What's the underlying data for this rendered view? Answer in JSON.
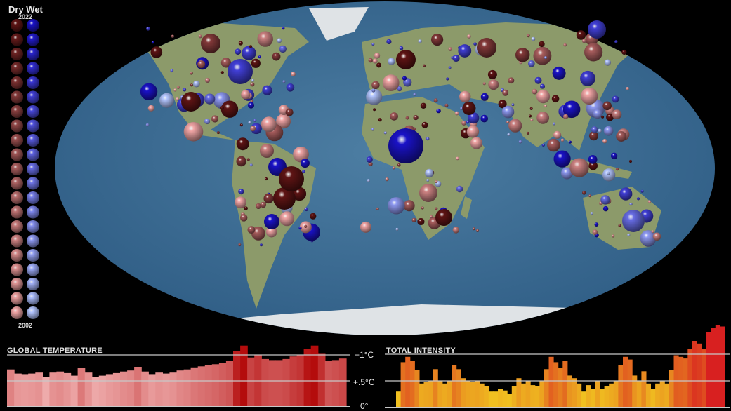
{
  "legend": {
    "title": "Dry Wet",
    "year_top": "2022",
    "year_bottom": "2002",
    "dry_colors": [
      "#5e1414",
      "#f2a6a6"
    ],
    "wet_colors": [
      "#1a12c8",
      "#b4c6ff"
    ]
  },
  "map": {
    "ocean_color": "#3f6f96",
    "land_color": "#8c9a6a",
    "ice_color": "#dfe3e6",
    "dry_color": "#c8574f",
    "wet_color": "#4a4ee8"
  },
  "chart_data": [
    {
      "type": "area",
      "title": "GLOBAL TEMPERATURE",
      "ylabel": "",
      "xlabel": "",
      "ylim": [
        0,
        1.25
      ],
      "ticks": [
        "+1°C",
        "+.5°C",
        "0°"
      ],
      "tick_values": [
        1,
        0.5,
        0
      ],
      "grid": true,
      "values": [
        0.72,
        0.64,
        0.63,
        0.64,
        0.66,
        0.57,
        0.66,
        0.68,
        0.65,
        0.6,
        0.75,
        0.66,
        0.58,
        0.6,
        0.63,
        0.65,
        0.68,
        0.7,
        0.77,
        0.68,
        0.63,
        0.66,
        0.64,
        0.66,
        0.7,
        0.72,
        0.76,
        0.78,
        0.8,
        0.82,
        0.85,
        0.88,
        1.08,
        1.18,
        0.95,
        1.0,
        0.92,
        0.9,
        0.9,
        0.92,
        0.97,
        1.0,
        1.12,
        1.18,
        1.02,
        0.88,
        0.9,
        0.93
      ],
      "color_low": "#f0b0b0",
      "color_high": "#b40c0c"
    },
    {
      "type": "bar",
      "title": "TOTAL INTENSITY",
      "xlabel": "",
      "ylabel": "",
      "grid": true,
      "values": [
        0.3,
        0.85,
        0.95,
        0.88,
        0.7,
        0.45,
        0.48,
        0.5,
        0.72,
        0.5,
        0.45,
        0.5,
        0.8,
        0.72,
        0.55,
        0.5,
        0.48,
        0.5,
        0.45,
        0.4,
        0.3,
        0.3,
        0.35,
        0.32,
        0.25,
        0.4,
        0.55,
        0.45,
        0.5,
        0.42,
        0.4,
        0.5,
        0.72,
        0.95,
        0.85,
        0.75,
        0.88,
        0.6,
        0.55,
        0.45,
        0.3,
        0.42,
        0.35,
        0.5,
        0.35,
        0.4,
        0.45,
        0.5,
        0.8,
        0.95,
        0.9,
        0.6,
        0.5,
        0.68,
        0.45,
        0.35,
        0.45,
        0.5,
        0.45,
        0.7,
        0.98,
        0.95,
        0.92,
        1.1,
        1.25,
        1.2,
        1.1,
        1.42,
        1.5,
        1.55,
        1.52
      ],
      "color_low": "#f0c020",
      "color_high": "#d82020"
    }
  ]
}
